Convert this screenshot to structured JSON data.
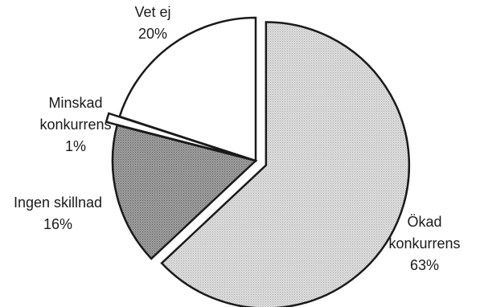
{
  "chart_data": {
    "type": "pie",
    "title": "",
    "slices": [
      {
        "category": "Ökad konkurrens",
        "label_lines": [
          "Ökad",
          "konkurrens",
          "63%"
        ],
        "value": 63,
        "exploded": true,
        "fill": "#d2d2d2"
      },
      {
        "category": "Ingen skillnad",
        "label_lines": [
          "Ingen skillnad",
          "16%"
        ],
        "value": 16,
        "exploded": false,
        "fill": "#8c8c8c"
      },
      {
        "category": "Minskad konkurrens",
        "label_lines": [
          "Minskad",
          "konkurrens",
          "1%"
        ],
        "value": 1,
        "exploded": true,
        "fill": "#ffffff"
      },
      {
        "category": "Vet ej",
        "label_lines": [
          "Vet ej",
          "20%"
        ],
        "value": 20,
        "exploded": false,
        "fill": "#ffffff"
      }
    ],
    "unit": "%",
    "legend": "none",
    "labels": "outside slices"
  }
}
